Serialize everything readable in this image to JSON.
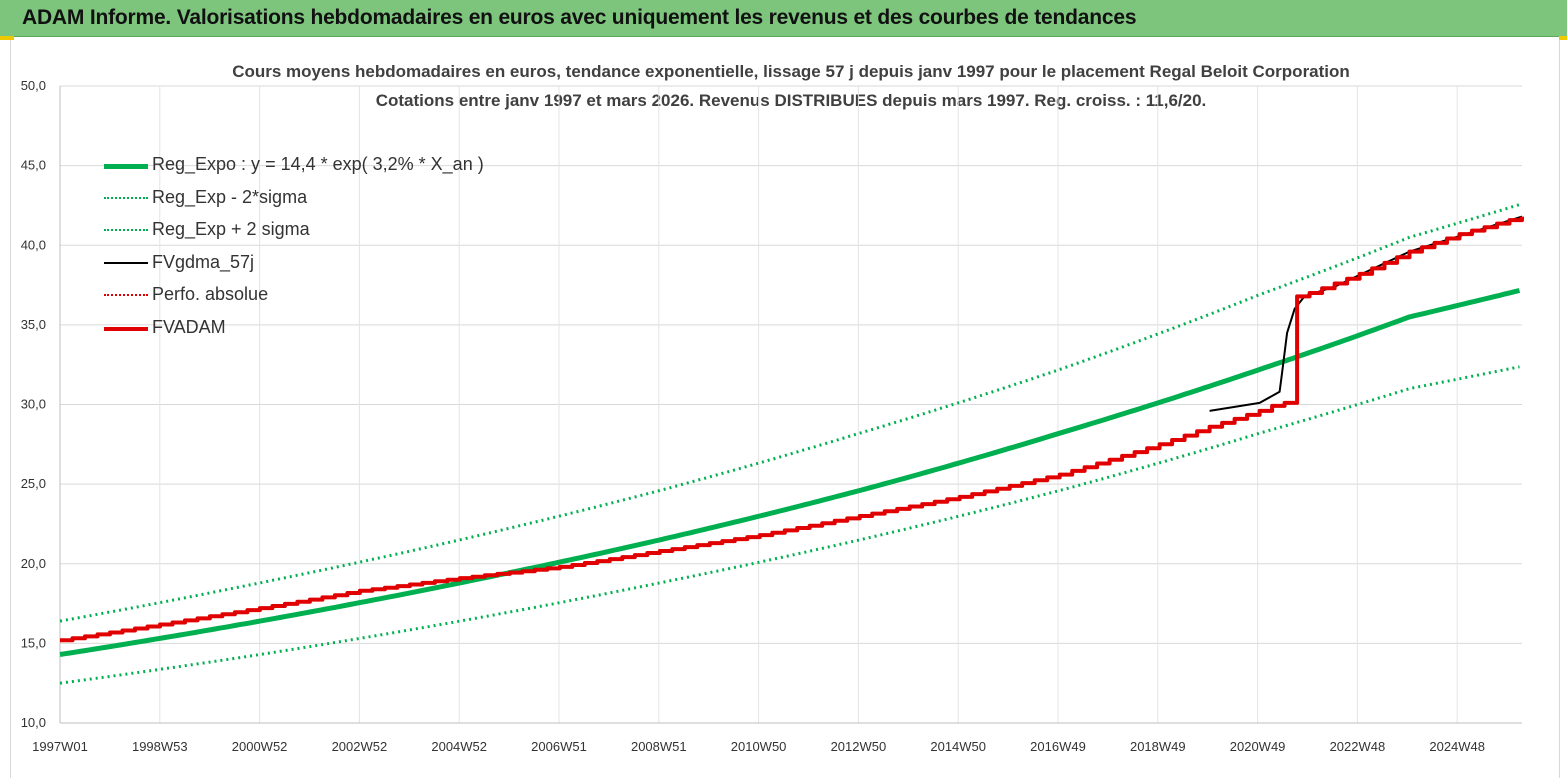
{
  "header": {
    "title": "ADAM Informe. Valorisations hebdomadaires en euros avec uniquement les revenus et des courbes de tendances"
  },
  "chart_data": {
    "type": "line",
    "title": "Cours moyens hebdomadaires en euros, tendance exponentielle, lissage 57 j depuis janv 1997 pour le placement Regal Beloit Corporation",
    "subtitle": "Cotations entre janv 1997 et mars 2026. Revenus DISTRIBUES depuis mars 1997. Reg. croiss. : 11,6/20.",
    "xlabel": "",
    "ylabel": "",
    "ylim": [
      10,
      50
    ],
    "y_ticks": [
      "10,0",
      "15,0",
      "20,0",
      "25,0",
      "30,0",
      "35,0",
      "40,0",
      "45,0",
      "50,0"
    ],
    "x_ticks": [
      "1997W01",
      "1998W53",
      "2000W52",
      "2002W52",
      "2004W52",
      "2006W51",
      "2008W51",
      "2010W50",
      "2012W50",
      "2014W50",
      "2016W49",
      "2018W49",
      "2020W49",
      "2022W48",
      "2024W48"
    ],
    "x_range": [
      1997.0,
      2026.25
    ],
    "grid": true,
    "legend_position": "top-left",
    "series": [
      {
        "name": "Reg_Expo : y = 14,4 * exp( 3,2% *  X_an )",
        "color": "#00b050",
        "style": "thick",
        "points": [
          [
            1997.0,
            14.3
          ],
          [
            2001.0,
            16.4
          ],
          [
            2005.0,
            18.8
          ],
          [
            2009.0,
            21.5
          ],
          [
            2013.0,
            24.6
          ],
          [
            2017.0,
            28.2
          ],
          [
            2021.0,
            32.2
          ],
          [
            2024.0,
            35.5
          ],
          [
            2026.25,
            37.2
          ]
        ]
      },
      {
        "name": "Reg_Exp - 2*sigma",
        "color": "#00b050",
        "style": "dotted",
        "points": [
          [
            1997.0,
            12.5
          ],
          [
            2001.0,
            14.3
          ],
          [
            2005.0,
            16.4
          ],
          [
            2009.0,
            18.8
          ],
          [
            2013.0,
            21.5
          ],
          [
            2017.0,
            24.6
          ],
          [
            2021.0,
            28.2
          ],
          [
            2024.0,
            31.0
          ],
          [
            2026.25,
            32.4
          ]
        ]
      },
      {
        "name": "Reg_Exp + 2 sigma",
        "color": "#00b050",
        "style": "dotted",
        "points": [
          [
            1997.0,
            16.4
          ],
          [
            2001.0,
            18.8
          ],
          [
            2005.0,
            21.5
          ],
          [
            2009.0,
            24.6
          ],
          [
            2013.0,
            28.2
          ],
          [
            2017.0,
            32.2
          ],
          [
            2021.0,
            36.9
          ],
          [
            2024.0,
            40.5
          ],
          [
            2026.25,
            42.6
          ]
        ]
      },
      {
        "name": "FVgdma_57j",
        "color": "#000000",
        "style": "solid",
        "points": [
          [
            2020.0,
            29.6
          ],
          [
            2021.0,
            30.1
          ],
          [
            2021.4,
            30.8
          ],
          [
            2021.45,
            32.0
          ],
          [
            2021.55,
            34.5
          ],
          [
            2021.7,
            36.0
          ],
          [
            2021.9,
            36.8
          ],
          [
            2022.5,
            37.4
          ],
          [
            2024.0,
            39.6
          ],
          [
            2026.25,
            41.8
          ]
        ]
      },
      {
        "name": "Perfo. absolue",
        "color": "#e00000",
        "style": "dotted",
        "points": []
      },
      {
        "name": "FVADAM",
        "color": "#e00000",
        "style": "thick-step",
        "points": [
          [
            1997.0,
            15.2
          ],
          [
            2000.0,
            16.7
          ],
          [
            2003.0,
            18.3
          ],
          [
            2005.0,
            19.1
          ],
          [
            2007.0,
            19.8
          ],
          [
            2009.0,
            20.8
          ],
          [
            2011.0,
            21.8
          ],
          [
            2013.0,
            23.0
          ],
          [
            2015.0,
            24.2
          ],
          [
            2017.0,
            25.6
          ],
          [
            2019.0,
            27.5
          ],
          [
            2020.0,
            28.6
          ],
          [
            2021.0,
            29.6
          ],
          [
            2021.4,
            30.1
          ],
          [
            2021.41,
            36.5
          ],
          [
            2022.0,
            37.0
          ],
          [
            2023.0,
            38.2
          ],
          [
            2024.0,
            39.6
          ],
          [
            2025.0,
            40.7
          ],
          [
            2026.25,
            41.8
          ]
        ]
      }
    ]
  }
}
